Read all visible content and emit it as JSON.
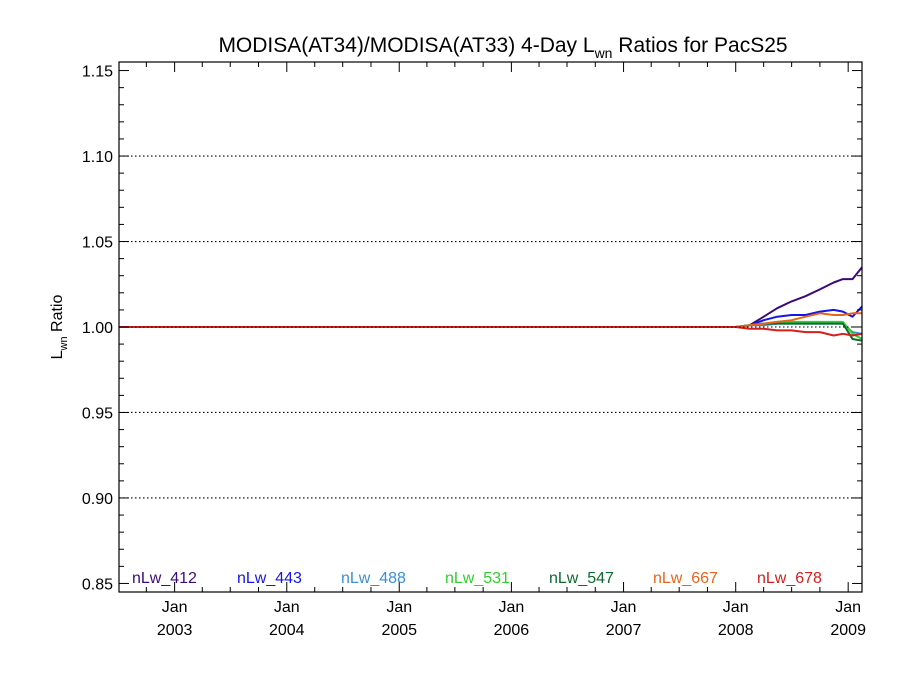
{
  "chart_data": {
    "type": "line",
    "title": "MODISA(AT34)/MODISA(AT33) 4-Day L",
    "title_sub": "wn",
    "title_tail": " Ratios for PacS25",
    "ylabel": "L",
    "ylabel_sub": "wn",
    "ylabel_tail": " Ratio",
    "xlim": [
      "2002-07-04",
      "2009-02-15"
    ],
    "ylim": [
      0.845,
      1.155
    ],
    "grid": "dotted horizontal at major y ticks",
    "y_ticks": [
      0.85,
      0.9,
      0.95,
      1.0,
      1.05,
      1.1,
      1.15
    ],
    "y_tick_labels": [
      "0.85",
      "0.90",
      "0.95",
      "1.00",
      "1.05",
      "1.10",
      "1.15"
    ],
    "x_ticks": [
      "2003-01-01",
      "2004-01-01",
      "2005-01-01",
      "2006-01-01",
      "2007-01-01",
      "2008-01-01",
      "2009-01-01"
    ],
    "x_tick_labels": [
      [
        "Jan",
        "2003"
      ],
      [
        "Jan",
        "2004"
      ],
      [
        "Jan",
        "2005"
      ],
      [
        "Jan",
        "2006"
      ],
      [
        "Jan",
        "2007"
      ],
      [
        "Jan",
        "2008"
      ],
      [
        "Jan",
        "2009"
      ]
    ],
    "legend_position": "bottom, horizontal inside plot",
    "series": [
      {
        "name": "nLw_412",
        "color": "#3d0a7a",
        "x": [
          "2002-07-04",
          "2008-01-01",
          "2008-02-15",
          "2008-04-01",
          "2008-05-15",
          "2008-07-01",
          "2008-08-15",
          "2008-10-01",
          "2008-11-15",
          "2008-12-15",
          "2009-01-15",
          "2009-02-15"
        ],
        "y": [
          1.0,
          1.0,
          1.001,
          1.006,
          1.011,
          1.015,
          1.018,
          1.022,
          1.026,
          1.028,
          1.028,
          1.035
        ]
      },
      {
        "name": "nLw_443",
        "color": "#1515e6",
        "x": [
          "2002-07-04",
          "2008-01-01",
          "2008-02-15",
          "2008-04-01",
          "2008-05-15",
          "2008-07-01",
          "2008-08-15",
          "2008-10-01",
          "2008-11-15",
          "2008-12-15",
          "2009-01-15",
          "2009-02-15"
        ],
        "y": [
          1.0,
          1.0,
          1.001,
          1.004,
          1.006,
          1.007,
          1.007,
          1.009,
          1.01,
          1.009,
          1.006,
          1.012
        ]
      },
      {
        "name": "nLw_488",
        "color": "#3a8ed8",
        "x": [
          "2002-07-04",
          "2008-01-01",
          "2008-02-15",
          "2008-04-01",
          "2008-05-15",
          "2008-07-01",
          "2008-08-15",
          "2008-10-01",
          "2008-11-15",
          "2008-12-15",
          "2009-01-15",
          "2009-02-15"
        ],
        "y": [
          1.0,
          1.0,
          1.001,
          1.001,
          1.002,
          1.002,
          1.002,
          1.002,
          1.002,
          1.002,
          0.997,
          0.996
        ]
      },
      {
        "name": "nLw_531",
        "color": "#2fd02f",
        "x": [
          "2002-07-04",
          "2008-01-01",
          "2008-02-15",
          "2008-04-01",
          "2008-05-15",
          "2008-07-01",
          "2008-08-15",
          "2008-10-01",
          "2008-11-15",
          "2008-12-15",
          "2009-01-15",
          "2009-02-15"
        ],
        "y": [
          1.0,
          1.0,
          1.001,
          1.002,
          1.003,
          1.003,
          1.003,
          1.003,
          1.003,
          1.003,
          0.996,
          0.993
        ]
      },
      {
        "name": "nLw_547",
        "color": "#0c6a32",
        "x": [
          "2002-07-04",
          "2008-01-01",
          "2008-02-15",
          "2008-04-01",
          "2008-05-15",
          "2008-07-01",
          "2008-08-15",
          "2008-10-01",
          "2008-11-15",
          "2008-12-15",
          "2009-01-15",
          "2009-02-15"
        ],
        "y": [
          1.0,
          1.0,
          1.001,
          1.002,
          1.002,
          1.002,
          1.002,
          1.002,
          1.002,
          1.002,
          0.993,
          0.992
        ]
      },
      {
        "name": "nLw_667",
        "color": "#e8641a",
        "x": [
          "2002-07-04",
          "2008-01-01",
          "2008-02-15",
          "2008-04-01",
          "2008-05-15",
          "2008-07-01",
          "2008-08-15",
          "2008-10-01",
          "2008-11-15",
          "2008-12-15",
          "2009-01-15",
          "2009-02-15"
        ],
        "y": [
          1.0,
          1.0,
          1.001,
          1.002,
          1.003,
          1.004,
          1.006,
          1.008,
          1.007,
          1.007,
          1.008,
          1.008
        ]
      },
      {
        "name": "nLw_678",
        "color": "#d41f1f",
        "x": [
          "2002-07-04",
          "2008-01-01",
          "2008-02-15",
          "2008-04-01",
          "2008-05-15",
          "2008-07-01",
          "2008-08-15",
          "2008-10-01",
          "2008-11-15",
          "2008-12-15",
          "2009-01-15",
          "2009-02-15"
        ],
        "y": [
          1.0,
          1.0,
          0.999,
          0.999,
          0.998,
          0.998,
          0.997,
          0.997,
          0.995,
          0.996,
          0.995,
          0.996
        ]
      }
    ]
  }
}
